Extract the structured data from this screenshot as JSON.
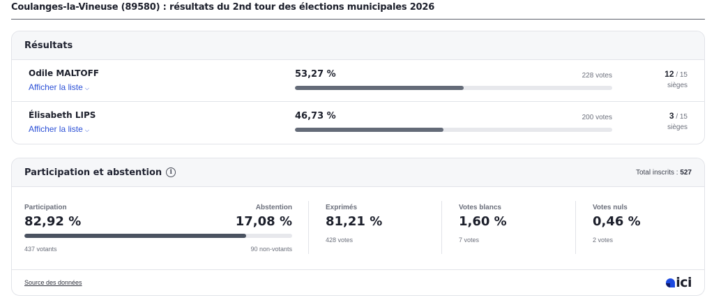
{
  "page": {
    "title": "Coulanges-la-Vineuse (89580) : résultats du 2nd tour des élections municipales 2026"
  },
  "results": {
    "header": "Résultats",
    "candidates": [
      {
        "name": "Odile MALTOFF",
        "link_label": "Afficher la liste",
        "percent_label": "53,27 %",
        "percent": 53.27,
        "votes_label": "228 votes",
        "seats_won": "12",
        "seats_total": "/ 15",
        "seats_label": "sièges"
      },
      {
        "name": "Élisabeth LIPS",
        "link_label": "Afficher la liste",
        "percent_label": "46,73 %",
        "percent": 46.73,
        "votes_label": "200 votes",
        "seats_won": "3",
        "seats_total": "/ 15",
        "seats_label": "sièges"
      }
    ]
  },
  "participation": {
    "header": "Participation et abstention",
    "info_icon": "info-icon",
    "total_label": "Total inscrits : ",
    "total_value": "527",
    "participation_label": "Participation",
    "participation_value": "82,92 %",
    "participation_percent": 82.92,
    "abstention_label": "Abstention",
    "abstention_value": "17,08 %",
    "votants": "437 votants",
    "non_votants": "90 non-votants",
    "columns": [
      {
        "label": "Exprimés",
        "value": "81,21 %",
        "sub": "428 votes"
      },
      {
        "label": "Votes blancs",
        "value": "1,60 %",
        "sub": "7 votes"
      },
      {
        "label": "Votes nuls",
        "value": "0,46 %",
        "sub": "2 votes"
      }
    ],
    "source_label": "Source des données",
    "logo_text": "ici"
  },
  "colors": {
    "link": "#2a4fd6",
    "bar_fill": "#646b78",
    "participation_fill": "#4a5260",
    "bar_track": "#e7e8ec",
    "logo_blue": "#1d4ae0"
  }
}
